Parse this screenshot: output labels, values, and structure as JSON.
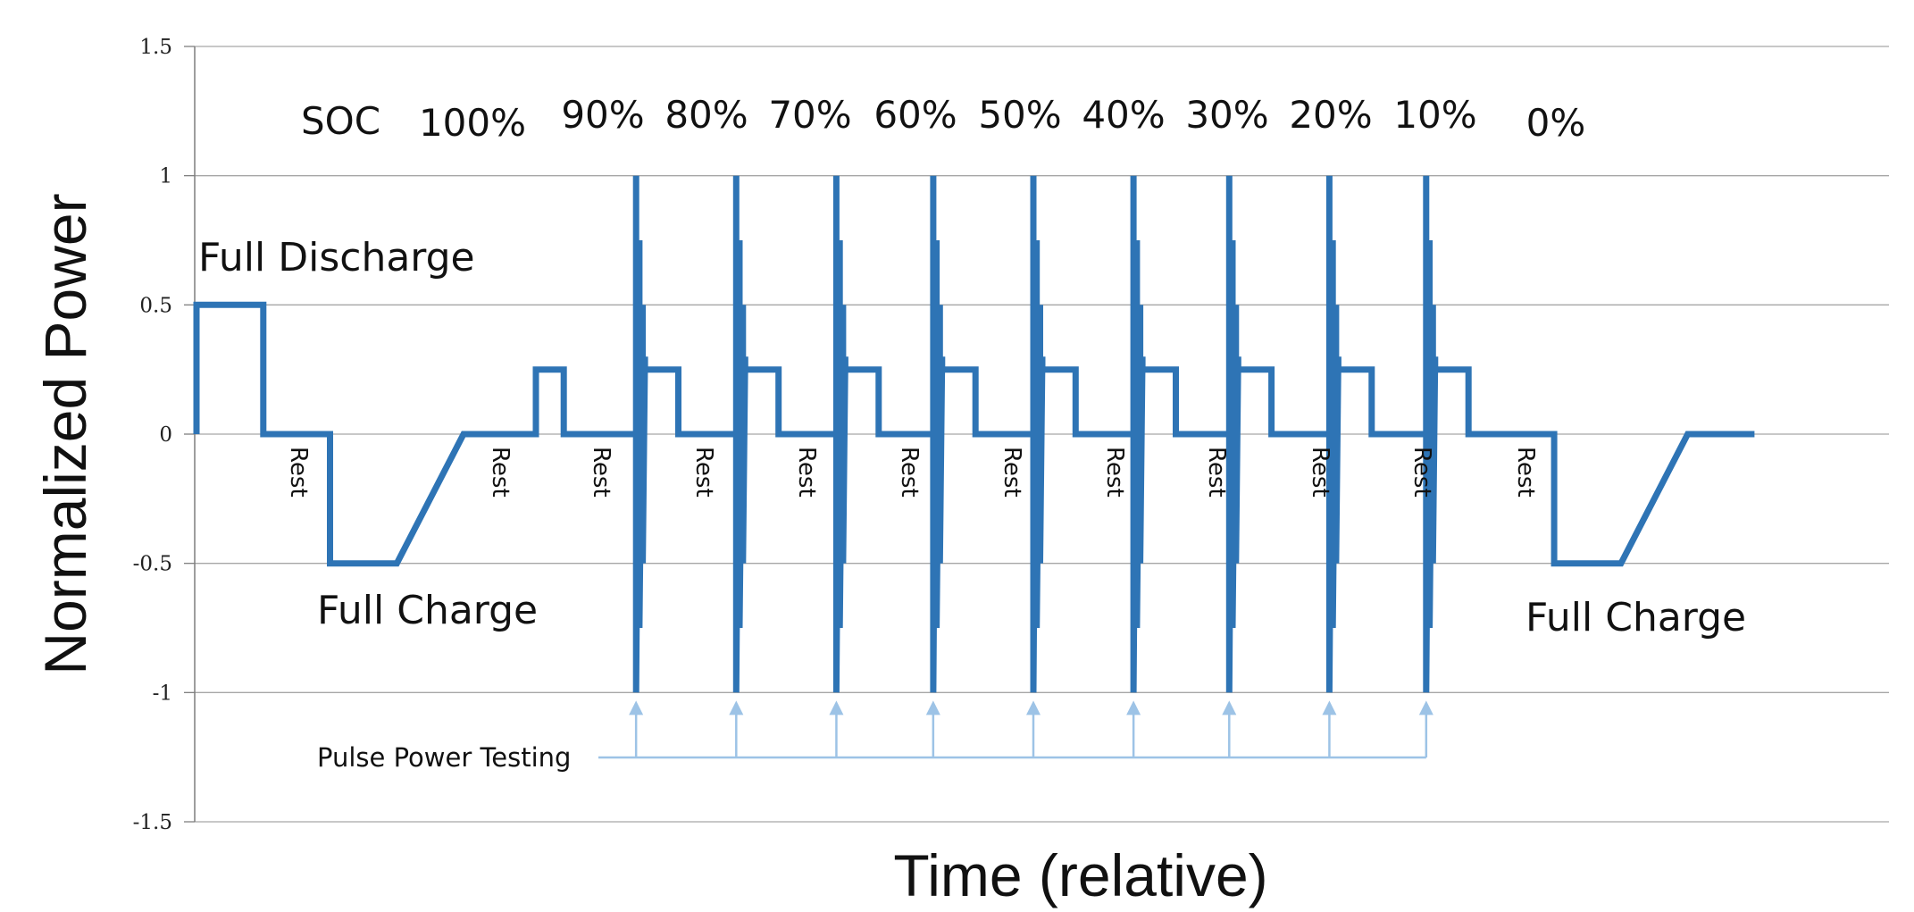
{
  "chart_data": {
    "type": "line",
    "title": "",
    "xlabel": "Time (relative)",
    "ylabel": "Normalized Power",
    "ylim": [
      -1.5,
      1.5
    ],
    "yticks": [
      "1.5",
      "1",
      "0.5",
      "0",
      "-0.5",
      "-1",
      "-1.5"
    ],
    "grid": true,
    "legend": "none",
    "series_color": "#2e74b5",
    "annotation_color": "#9dc3e6",
    "series": [
      {
        "baseline_steps": [
          [
            0,
            0
          ],
          [
            0,
            0.5
          ],
          [
            0.6,
            0.5
          ],
          [
            0.6,
            0
          ],
          [
            1.2,
            0
          ],
          [
            1.2,
            -0.5
          ],
          [
            1.8,
            -0.5
          ],
          [
            2.4,
            0
          ],
          [
            3.05,
            0
          ],
          [
            3.05,
            0.25
          ],
          [
            3.3,
            0.25
          ],
          [
            3.3,
            0
          ],
          [
            3.95,
            0
          ]
        ],
        "pulse_cycle": {
          "start_times": [
            3.95,
            4.85,
            5.75,
            6.62,
            7.52,
            8.42,
            9.28,
            10.18,
            11.05
          ],
          "pulse_amplitude": [
            1,
            -1
          ],
          "post_pulse_step": 0.25,
          "post_pulse_step_duration": 0.3
        },
        "tail_steps": [
          [
            11.55,
            0
          ],
          [
            12.2,
            0
          ],
          [
            12.2,
            -0.5
          ],
          [
            12.8,
            -0.5
          ],
          [
            13.4,
            0
          ],
          [
            14.0,
            0
          ]
        ]
      }
    ],
    "annotations": {
      "soc_label": "SOC",
      "soc_levels": [
        "100%",
        "90%",
        "80%",
        "70%",
        "60%",
        "50%",
        "40%",
        "30%",
        "20%",
        "10%",
        "0%"
      ],
      "full_discharge": "Full Discharge",
      "full_charge": "Full Charge",
      "rest": "Rest",
      "pulse_power_testing": "Pulse Power Testing"
    }
  }
}
